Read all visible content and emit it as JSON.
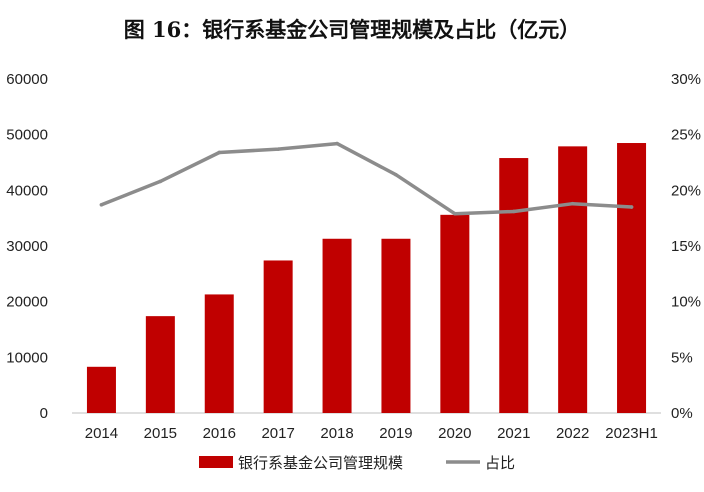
{
  "chart_data": {
    "type": "bar",
    "title": "图 16：银行系基金公司管理规模及占比（亿元）",
    "categories": [
      "2014",
      "2015",
      "2016",
      "2017",
      "2018",
      "2019",
      "2020",
      "2021",
      "2022",
      "2023H1"
    ],
    "series": [
      {
        "name": "银行系基金公司管理规模",
        "type": "bar",
        "axis": "left",
        "color": "#C00000",
        "values": [
          8300,
          17400,
          21300,
          27400,
          31300,
          31300,
          35600,
          45800,
          47900,
          48500
        ]
      },
      {
        "name": "占比",
        "type": "line",
        "axis": "right",
        "color": "#8C8C8C",
        "values": [
          18.7,
          20.8,
          23.4,
          23.7,
          24.2,
          21.4,
          17.9,
          18.1,
          18.8,
          18.5
        ]
      }
    ],
    "y_left": {
      "min": 0,
      "max": 60000,
      "step": 10000,
      "ticks": [
        "0",
        "10000",
        "20000",
        "30000",
        "40000",
        "50000",
        "60000"
      ]
    },
    "y_right": {
      "min": 0,
      "max": 30,
      "step": 5,
      "ticks": [
        "0%",
        "5%",
        "10%",
        "15%",
        "20%",
        "25%",
        "30%"
      ]
    },
    "grid": false,
    "legend_position": "bottom"
  }
}
